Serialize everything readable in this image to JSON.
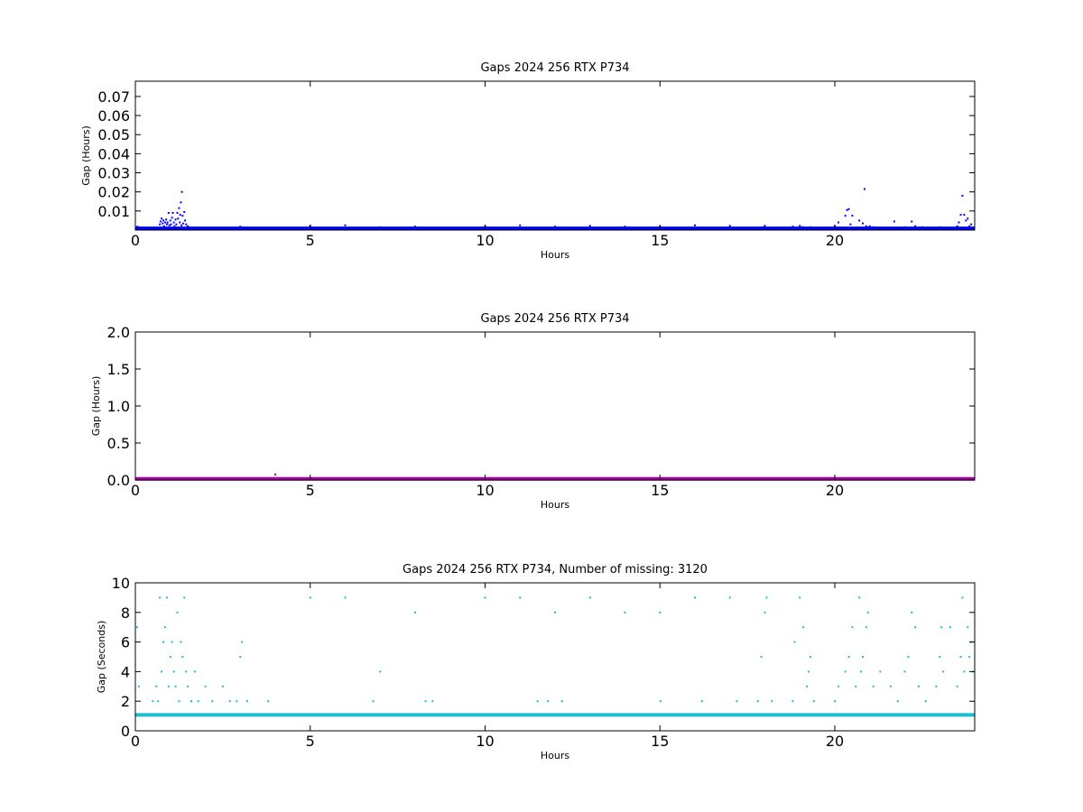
{
  "chart_data": [
    {
      "type": "scatter",
      "title": "Gaps 2024 256 RTX  P734",
      "xlabel": "Hours",
      "ylabel": "Gap (Hours)",
      "xlim": [
        0,
        24
      ],
      "ylim": [
        0,
        0.078
      ],
      "xticks": [
        0,
        5,
        10,
        15,
        20
      ],
      "yticks": [
        0.01,
        0.02,
        0.03,
        0.04,
        0.05,
        0.06,
        0.07
      ],
      "ytick_labels": [
        "0.01",
        "0.02",
        "0.03",
        "0.04",
        "0.05",
        "0.06",
        "0.07"
      ],
      "xtick_labels": [
        "0",
        "5",
        "10",
        "15",
        "20"
      ],
      "grid": false,
      "color": "#0000ff",
      "baseline": {
        "x": [
          0,
          24
        ],
        "y": 0.0003
      },
      "points": [
        [
          0.05,
          0.0017
        ],
        [
          0.1,
          0.0015
        ],
        [
          0.7,
          0.003
        ],
        [
          0.72,
          0.0045
        ],
        [
          0.75,
          0.006
        ],
        [
          0.78,
          0.0035
        ],
        [
          0.8,
          0.005
        ],
        [
          0.82,
          0.002
        ],
        [
          0.85,
          0.004
        ],
        [
          0.88,
          0.0055
        ],
        [
          0.9,
          0.003
        ],
        [
          0.92,
          0.004
        ],
        [
          0.95,
          0.009
        ],
        [
          0.97,
          0.0025
        ],
        [
          1.0,
          0.005
        ],
        [
          1.02,
          0.003
        ],
        [
          1.05,
          0.0065
        ],
        [
          1.07,
          0.009
        ],
        [
          1.1,
          0.004
        ],
        [
          1.12,
          0.002
        ],
        [
          1.15,
          0.0055
        ],
        [
          1.17,
          0.003
        ],
        [
          1.2,
          0.009
        ],
        [
          1.22,
          0.006
        ],
        [
          1.25,
          0.0115
        ],
        [
          1.27,
          0.004
        ],
        [
          1.28,
          0.008
        ],
        [
          1.3,
          0.0145
        ],
        [
          1.32,
          0.0025
        ],
        [
          1.33,
          0.02
        ],
        [
          1.35,
          0.0075
        ],
        [
          1.37,
          0.0035
        ],
        [
          1.4,
          0.0095
        ],
        [
          1.42,
          0.005
        ],
        [
          1.45,
          0.003
        ],
        [
          1.5,
          0.002
        ],
        [
          3.0,
          0.0018
        ],
        [
          5.0,
          0.0022
        ],
        [
          6.0,
          0.0025
        ],
        [
          7.0,
          0.0015
        ],
        [
          8.0,
          0.0018
        ],
        [
          10.0,
          0.002
        ],
        [
          11.0,
          0.0025
        ],
        [
          12.0,
          0.0018
        ],
        [
          13.0,
          0.0022
        ],
        [
          14.0,
          0.0018
        ],
        [
          15.0,
          0.0018
        ],
        [
          16.0,
          0.0025
        ],
        [
          17.0,
          0.0022
        ],
        [
          18.0,
          0.0022
        ],
        [
          17.95,
          0.0015
        ],
        [
          18.8,
          0.0018
        ],
        [
          19.0,
          0.0022
        ],
        [
          19.1,
          0.0015
        ],
        [
          19.3,
          0.0015
        ],
        [
          20.0,
          0.002
        ],
        [
          20.1,
          0.004
        ],
        [
          20.3,
          0.0075
        ],
        [
          20.35,
          0.0105
        ],
        [
          20.4,
          0.011
        ],
        [
          20.45,
          0.003
        ],
        [
          20.5,
          0.0075
        ],
        [
          20.7,
          0.005
        ],
        [
          20.8,
          0.0035
        ],
        [
          20.85,
          0.0215
        ],
        [
          20.9,
          0.002
        ],
        [
          21.0,
          0.002
        ],
        [
          21.1,
          0.0015
        ],
        [
          21.7,
          0.0045
        ],
        [
          22.0,
          0.0015
        ],
        [
          22.2,
          0.0045
        ],
        [
          22.3,
          0.002
        ],
        [
          22.5,
          0.0015
        ],
        [
          23.0,
          0.0015
        ],
        [
          23.5,
          0.002
        ],
        [
          23.55,
          0.004
        ],
        [
          23.6,
          0.008
        ],
        [
          23.65,
          0.018
        ],
        [
          23.7,
          0.008
        ],
        [
          23.75,
          0.005
        ],
        [
          23.8,
          0.006
        ],
        [
          23.85,
          0.002
        ],
        [
          23.9,
          0.003
        ]
      ]
    },
    {
      "type": "scatter",
      "title": "Gaps 2024 256 RTX  P734",
      "xlabel": "Hours",
      "ylabel": "Gap (Hours)",
      "xlim": [
        0,
        24
      ],
      "ylim": [
        0,
        2.0
      ],
      "xticks": [
        0,
        5,
        10,
        15,
        20
      ],
      "yticks": [
        0.0,
        0.5,
        1.0,
        1.5,
        2.0
      ],
      "ytick_labels": [
        "0.0",
        "0.5",
        "1.0",
        "1.5",
        "2.0"
      ],
      "xtick_labels": [
        "0",
        "5",
        "10",
        "15",
        "20"
      ],
      "grid": false,
      "color": "#aa00aa",
      "baseline": {
        "x": [
          0,
          24
        ],
        "y": 0.0003
      },
      "points": [
        [
          4.0,
          0.075
        ]
      ]
    },
    {
      "type": "scatter",
      "title": "Gaps 2024 256 RTX  P734, Number of missing: 3120",
      "xlabel": "Hours",
      "ylabel": "Gap (Seconds)",
      "xlim": [
        0,
        24
      ],
      "ylim": [
        0,
        10
      ],
      "xticks": [
        0,
        5,
        10,
        15,
        20
      ],
      "yticks": [
        0,
        2,
        4,
        6,
        8,
        10
      ],
      "ytick_labels": [
        "0",
        "2",
        "4",
        "6",
        "8",
        "10"
      ],
      "xtick_labels": [
        "0",
        "5",
        "10",
        "15",
        "20"
      ],
      "grid": false,
      "color": "#17becf",
      "baseline": {
        "x": [
          0,
          24
        ],
        "y": 1
      },
      "points": [
        [
          0.05,
          7
        ],
        [
          0.1,
          3
        ],
        [
          0.5,
          2
        ],
        [
          0.6,
          3
        ],
        [
          0.65,
          2
        ],
        [
          0.7,
          9
        ],
        [
          0.75,
          4
        ],
        [
          0.8,
          6
        ],
        [
          0.85,
          7
        ],
        [
          0.9,
          9
        ],
        [
          0.95,
          3
        ],
        [
          1.0,
          5
        ],
        [
          1.05,
          6
        ],
        [
          1.1,
          4
        ],
        [
          1.15,
          3
        ],
        [
          1.2,
          8
        ],
        [
          1.25,
          2
        ],
        [
          1.3,
          6
        ],
        [
          1.35,
          5
        ],
        [
          1.4,
          9
        ],
        [
          1.45,
          4
        ],
        [
          1.5,
          3
        ],
        [
          1.6,
          2
        ],
        [
          1.7,
          4
        ],
        [
          1.8,
          2
        ],
        [
          2.0,
          3
        ],
        [
          2.2,
          2
        ],
        [
          2.5,
          3
        ],
        [
          2.7,
          2
        ],
        [
          2.9,
          2
        ],
        [
          3.0,
          5
        ],
        [
          3.05,
          6
        ],
        [
          3.2,
          2
        ],
        [
          3.8,
          2
        ],
        [
          5.0,
          9
        ],
        [
          6.0,
          9
        ],
        [
          6.8,
          2
        ],
        [
          7.0,
          4
        ],
        [
          8.0,
          8
        ],
        [
          8.3,
          2
        ],
        [
          8.5,
          2
        ],
        [
          10.0,
          9
        ],
        [
          11.0,
          9
        ],
        [
          11.5,
          2
        ],
        [
          11.8,
          2
        ],
        [
          12.0,
          8
        ],
        [
          12.2,
          2
        ],
        [
          13.0,
          9
        ],
        [
          14.0,
          8
        ],
        [
          15.0,
          8
        ],
        [
          15.02,
          2
        ],
        [
          16.0,
          9
        ],
        [
          16.2,
          2
        ],
        [
          17.0,
          9
        ],
        [
          17.2,
          2
        ],
        [
          17.8,
          2
        ],
        [
          17.9,
          5
        ],
        [
          18.0,
          8
        ],
        [
          18.05,
          9
        ],
        [
          18.2,
          2
        ],
        [
          18.8,
          2
        ],
        [
          18.85,
          6
        ],
        [
          19.0,
          9
        ],
        [
          19.1,
          7
        ],
        [
          19.2,
          3
        ],
        [
          19.3,
          5
        ],
        [
          19.25,
          4
        ],
        [
          19.4,
          2
        ],
        [
          20.0,
          2
        ],
        [
          20.1,
          3
        ],
        [
          20.3,
          4
        ],
        [
          20.4,
          5
        ],
        [
          20.5,
          7
        ],
        [
          20.6,
          3
        ],
        [
          20.7,
          9
        ],
        [
          20.75,
          4
        ],
        [
          20.8,
          5
        ],
        [
          20.9,
          7
        ],
        [
          20.95,
          8
        ],
        [
          21.1,
          3
        ],
        [
          21.3,
          4
        ],
        [
          21.6,
          3
        ],
        [
          21.8,
          2
        ],
        [
          22.0,
          4
        ],
        [
          22.1,
          5
        ],
        [
          22.2,
          8
        ],
        [
          22.3,
          7
        ],
        [
          22.4,
          3
        ],
        [
          22.6,
          2
        ],
        [
          22.9,
          3
        ],
        [
          23.0,
          5
        ],
        [
          23.05,
          7
        ],
        [
          23.1,
          4
        ],
        [
          23.3,
          7
        ],
        [
          23.5,
          3
        ],
        [
          23.6,
          5
        ],
        [
          23.65,
          9
        ],
        [
          23.7,
          4
        ],
        [
          23.8,
          7
        ],
        [
          23.85,
          5
        ],
        [
          23.9,
          6
        ],
        [
          23.95,
          4
        ]
      ]
    }
  ]
}
